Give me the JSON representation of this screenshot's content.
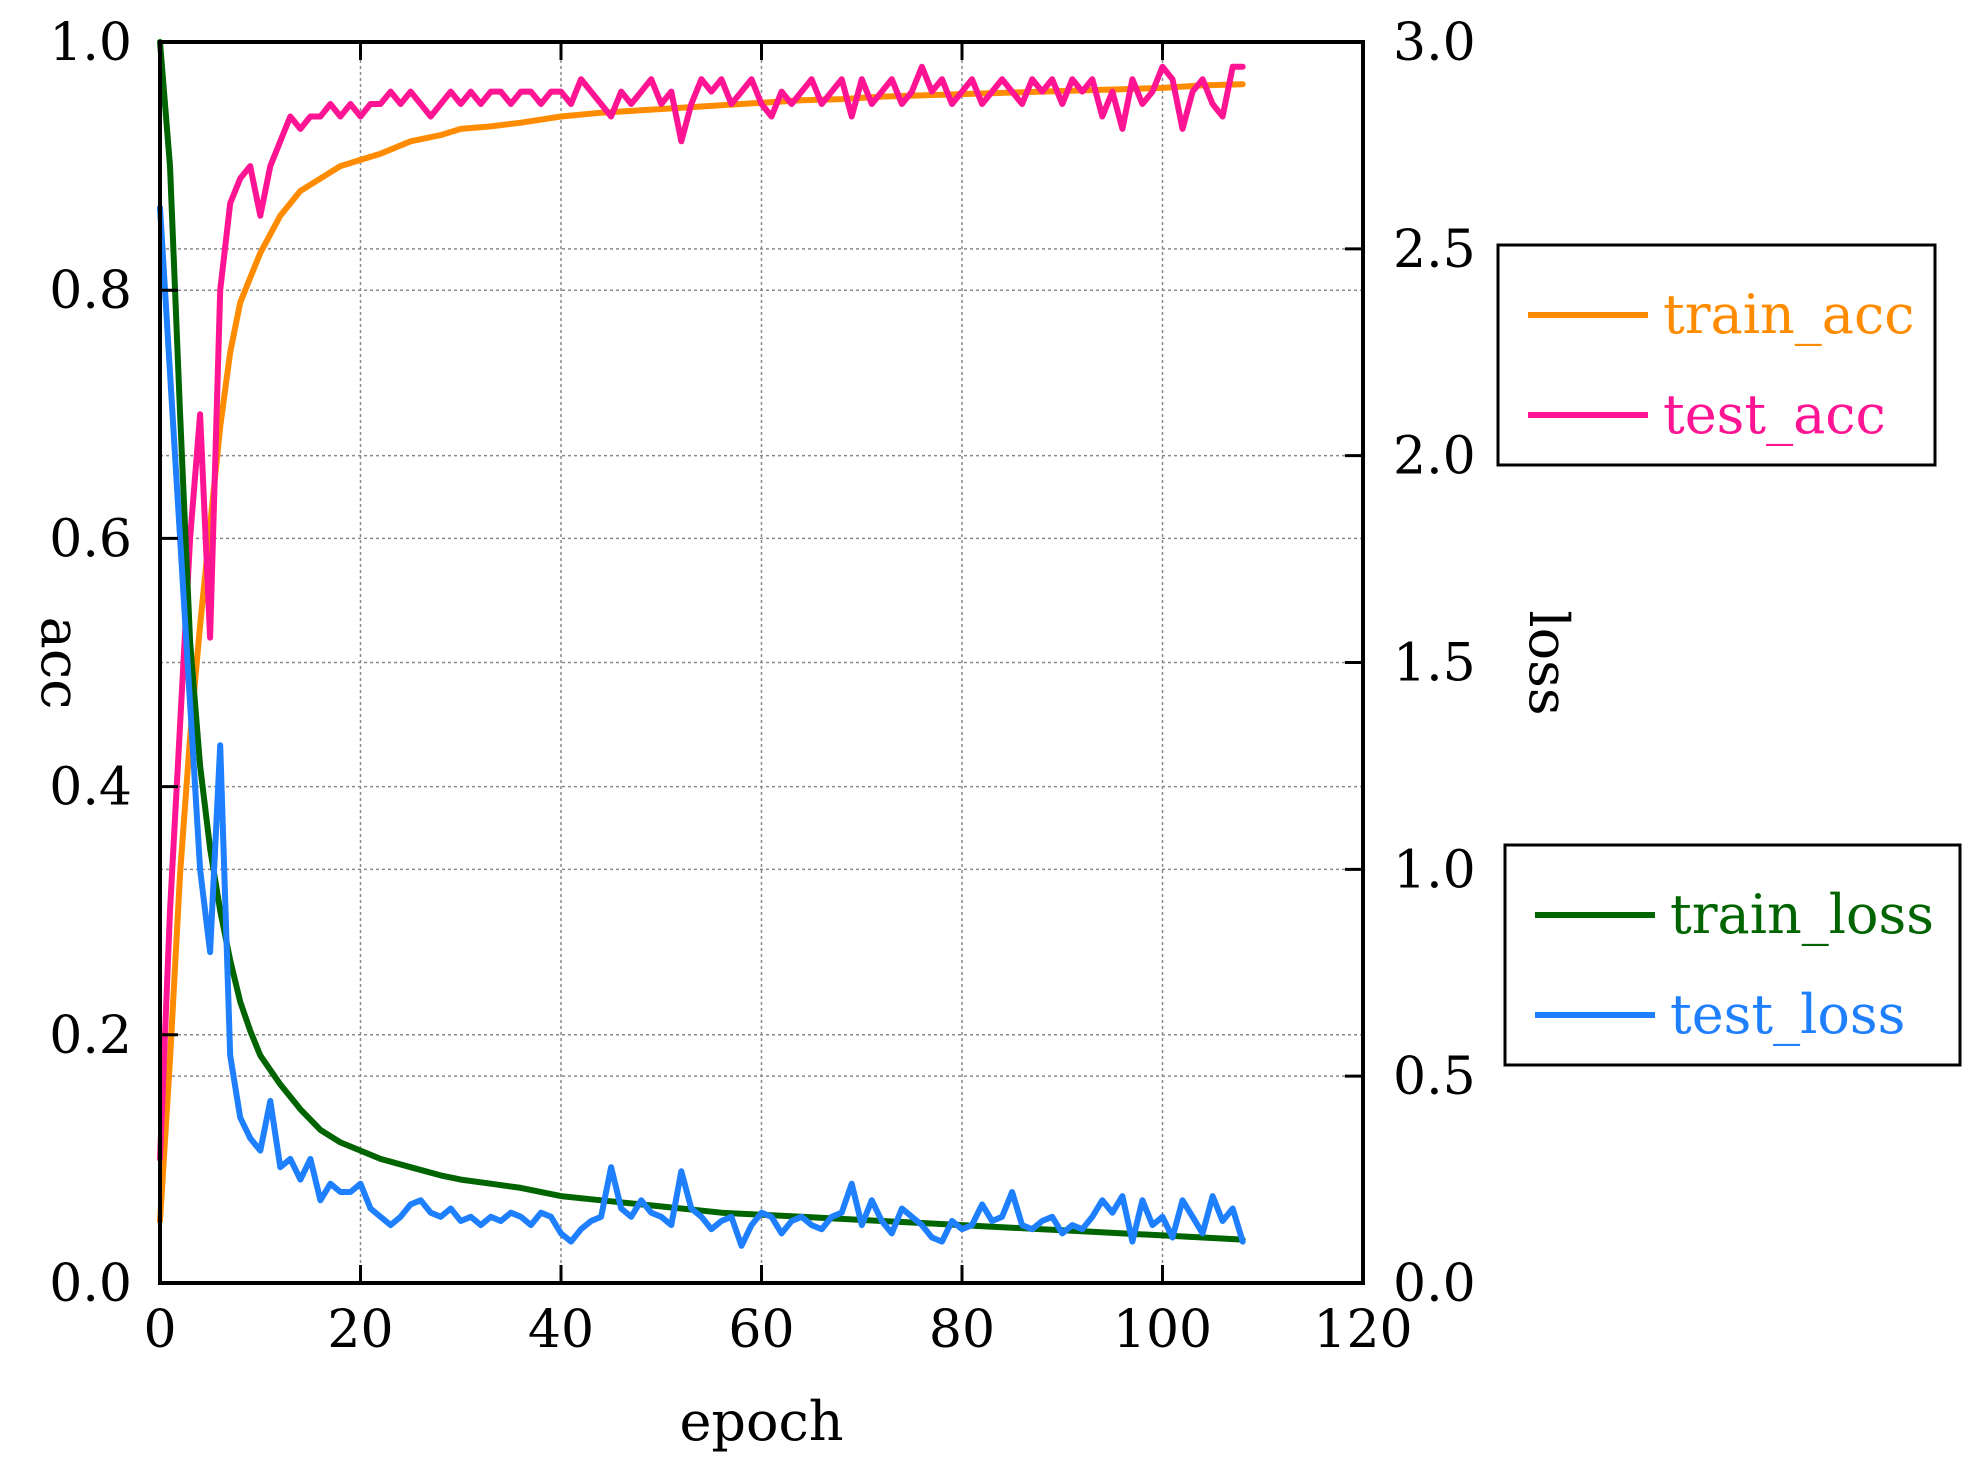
{
  "chart_data": {
    "type": "line",
    "title": "",
    "xlabel": "epoch",
    "ylabel_left": "acc",
    "ylabel_right": "loss",
    "xlim": [
      0,
      120
    ],
    "ylim_left": [
      0.0,
      1.0
    ],
    "ylim_right": [
      0.0,
      3.0
    ],
    "grid": true,
    "x_ticks": [
      "0",
      "20",
      "40",
      "60",
      "80",
      "100",
      "120"
    ],
    "y_left_ticks": [
      "0.0",
      "0.2",
      "0.4",
      "0.6",
      "0.8",
      "1.0"
    ],
    "y_right_ticks": [
      "0.0",
      "0.5",
      "1.0",
      "1.5",
      "2.0",
      "2.5",
      "3.0"
    ],
    "legends": [
      {
        "placement": "right-upper",
        "entries": [
          "train_acc",
          "test_acc"
        ]
      },
      {
        "placement": "right-lower",
        "entries": [
          "train_loss",
          "test_loss"
        ]
      }
    ],
    "series": [
      {
        "name": "train_acc",
        "axis": "left",
        "color": "#ff8c00",
        "x": [
          0,
          1,
          2,
          3,
          4,
          5,
          6,
          7,
          8,
          9,
          10,
          12,
          14,
          16,
          18,
          20,
          22,
          25,
          28,
          30,
          33,
          36,
          40,
          44,
          48,
          52,
          56,
          60,
          64,
          68,
          72,
          76,
          80,
          84,
          88,
          92,
          96,
          100,
          104,
          108
        ],
        "values": [
          0.05,
          0.18,
          0.33,
          0.44,
          0.53,
          0.61,
          0.69,
          0.75,
          0.79,
          0.81,
          0.83,
          0.86,
          0.88,
          0.89,
          0.9,
          0.905,
          0.91,
          0.92,
          0.925,
          0.93,
          0.932,
          0.935,
          0.94,
          0.943,
          0.945,
          0.947,
          0.949,
          0.951,
          0.953,
          0.954,
          0.956,
          0.957,
          0.958,
          0.959,
          0.96,
          0.961,
          0.962,
          0.963,
          0.965,
          0.966
        ]
      },
      {
        "name": "test_acc",
        "axis": "left",
        "color": "#ff1493",
        "x": [
          0,
          1,
          2,
          3,
          4,
          5,
          6,
          7,
          8,
          9,
          10,
          11,
          12,
          13,
          14,
          15,
          16,
          17,
          18,
          19,
          20,
          21,
          22,
          23,
          24,
          25,
          26,
          27,
          28,
          29,
          30,
          31,
          32,
          33,
          34,
          35,
          36,
          37,
          38,
          39,
          40,
          41,
          42,
          43,
          44,
          45,
          46,
          47,
          48,
          49,
          50,
          51,
          52,
          53,
          54,
          55,
          56,
          57,
          58,
          59,
          60,
          61,
          62,
          63,
          64,
          65,
          66,
          67,
          68,
          69,
          70,
          71,
          72,
          73,
          74,
          75,
          76,
          77,
          78,
          79,
          80,
          81,
          82,
          83,
          84,
          85,
          86,
          87,
          88,
          89,
          90,
          91,
          92,
          93,
          94,
          95,
          96,
          97,
          98,
          99,
          100,
          101,
          102,
          103,
          104,
          105,
          106,
          107,
          108
        ],
        "values": [
          0.1,
          0.3,
          0.45,
          0.6,
          0.7,
          0.52,
          0.8,
          0.87,
          0.89,
          0.9,
          0.86,
          0.9,
          0.92,
          0.94,
          0.93,
          0.94,
          0.94,
          0.95,
          0.94,
          0.95,
          0.94,
          0.95,
          0.95,
          0.96,
          0.95,
          0.96,
          0.95,
          0.94,
          0.95,
          0.96,
          0.95,
          0.96,
          0.95,
          0.96,
          0.96,
          0.95,
          0.96,
          0.96,
          0.95,
          0.96,
          0.96,
          0.95,
          0.97,
          0.96,
          0.95,
          0.94,
          0.96,
          0.95,
          0.96,
          0.97,
          0.95,
          0.96,
          0.92,
          0.95,
          0.97,
          0.96,
          0.97,
          0.95,
          0.96,
          0.97,
          0.95,
          0.94,
          0.96,
          0.95,
          0.96,
          0.97,
          0.95,
          0.96,
          0.97,
          0.94,
          0.97,
          0.95,
          0.96,
          0.97,
          0.95,
          0.96,
          0.98,
          0.96,
          0.97,
          0.95,
          0.96,
          0.97,
          0.95,
          0.96,
          0.97,
          0.96,
          0.95,
          0.97,
          0.96,
          0.97,
          0.95,
          0.97,
          0.96,
          0.97,
          0.94,
          0.96,
          0.93,
          0.97,
          0.95,
          0.96,
          0.98,
          0.97,
          0.93,
          0.96,
          0.97,
          0.95,
          0.94,
          0.98,
          0.98
        ]
      },
      {
        "name": "train_loss",
        "axis": "right",
        "color": "#006400",
        "x": [
          0,
          1,
          2,
          3,
          4,
          5,
          6,
          7,
          8,
          9,
          10,
          12,
          14,
          16,
          18,
          20,
          22,
          25,
          28,
          30,
          33,
          36,
          40,
          44,
          48,
          52,
          56,
          60,
          64,
          68,
          72,
          76,
          80,
          84,
          88,
          92,
          96,
          100,
          104,
          108
        ],
        "values": [
          3.0,
          2.7,
          2.1,
          1.55,
          1.25,
          1.05,
          0.9,
          0.78,
          0.68,
          0.61,
          0.55,
          0.48,
          0.42,
          0.37,
          0.34,
          0.32,
          0.3,
          0.28,
          0.26,
          0.25,
          0.24,
          0.23,
          0.21,
          0.2,
          0.19,
          0.18,
          0.17,
          0.165,
          0.16,
          0.155,
          0.15,
          0.145,
          0.14,
          0.135,
          0.13,
          0.125,
          0.12,
          0.115,
          0.11,
          0.105
        ]
      },
      {
        "name": "test_loss",
        "axis": "right",
        "color": "#1e7fff",
        "x": [
          0,
          1,
          2,
          3,
          4,
          5,
          6,
          7,
          8,
          9,
          10,
          11,
          12,
          13,
          14,
          15,
          16,
          17,
          18,
          19,
          20,
          21,
          22,
          23,
          24,
          25,
          26,
          27,
          28,
          29,
          30,
          31,
          32,
          33,
          34,
          35,
          36,
          37,
          38,
          39,
          40,
          41,
          42,
          43,
          44,
          45,
          46,
          47,
          48,
          49,
          50,
          51,
          52,
          53,
          54,
          55,
          56,
          57,
          58,
          59,
          60,
          61,
          62,
          63,
          64,
          65,
          66,
          67,
          68,
          69,
          70,
          71,
          72,
          73,
          74,
          75,
          76,
          77,
          78,
          79,
          80,
          81,
          82,
          83,
          84,
          85,
          86,
          87,
          88,
          89,
          90,
          91,
          92,
          93,
          94,
          95,
          96,
          97,
          98,
          99,
          100,
          101,
          102,
          103,
          104,
          105,
          106,
          107,
          108
        ],
        "values": [
          2.6,
          2.2,
          1.8,
          1.4,
          1.0,
          0.8,
          1.3,
          0.55,
          0.4,
          0.35,
          0.32,
          0.44,
          0.28,
          0.3,
          0.25,
          0.3,
          0.2,
          0.24,
          0.22,
          0.22,
          0.24,
          0.18,
          0.16,
          0.14,
          0.16,
          0.19,
          0.2,
          0.17,
          0.16,
          0.18,
          0.15,
          0.16,
          0.14,
          0.16,
          0.15,
          0.17,
          0.16,
          0.14,
          0.17,
          0.16,
          0.12,
          0.1,
          0.13,
          0.15,
          0.16,
          0.28,
          0.18,
          0.16,
          0.2,
          0.17,
          0.16,
          0.14,
          0.27,
          0.18,
          0.16,
          0.13,
          0.15,
          0.16,
          0.09,
          0.14,
          0.17,
          0.16,
          0.12,
          0.15,
          0.16,
          0.14,
          0.13,
          0.16,
          0.17,
          0.24,
          0.14,
          0.2,
          0.15,
          0.12,
          0.18,
          0.16,
          0.14,
          0.11,
          0.1,
          0.15,
          0.13,
          0.14,
          0.19,
          0.15,
          0.16,
          0.22,
          0.14,
          0.13,
          0.15,
          0.16,
          0.12,
          0.14,
          0.13,
          0.16,
          0.2,
          0.17,
          0.21,
          0.1,
          0.2,
          0.14,
          0.16,
          0.11,
          0.2,
          0.16,
          0.12,
          0.21,
          0.15,
          0.18,
          0.1
        ]
      }
    ]
  }
}
